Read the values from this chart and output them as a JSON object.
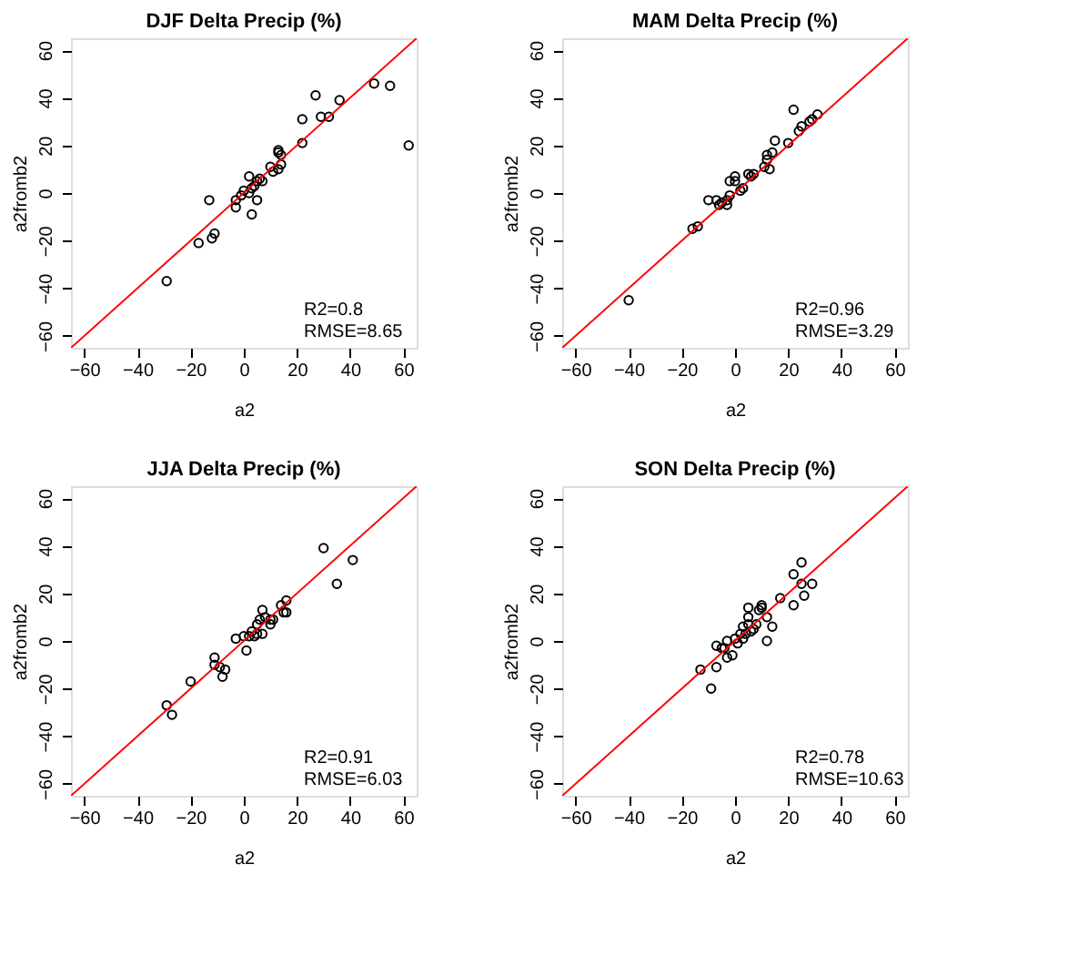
{
  "chart_data": [
    {
      "type": "scatter",
      "title": "DJF Delta Precip (%)",
      "xlabel": "a2",
      "ylabel": "a2fromb2",
      "xlim": [
        -65,
        65
      ],
      "ylim": [
        -65,
        65
      ],
      "xticks": [
        -60,
        -40,
        -20,
        0,
        20,
        40,
        60
      ],
      "yticks": [
        -60,
        -40,
        -20,
        0,
        20,
        40,
        60
      ],
      "grid": false,
      "marker": "circle",
      "annotations": [
        "R2=0.8",
        "RMSE=8.65"
      ],
      "series": [
        {
          "color": "#000000",
          "x": [
            -29,
            -17,
            -12,
            -11,
            -13,
            -3,
            -3,
            -1,
            0,
            2,
            2,
            3,
            3,
            4,
            5,
            5,
            6,
            7,
            10,
            11,
            13,
            13,
            13,
            14,
            14,
            22,
            22,
            27,
            29,
            32,
            36,
            49,
            55,
            62
          ],
          "values": [
            -37,
            -21,
            -19,
            -17,
            -3,
            -3,
            -6,
            -1,
            1,
            0,
            7,
            -9,
            2,
            3,
            -3,
            5,
            6,
            5,
            11,
            9,
            10,
            18,
            17,
            16,
            12,
            21,
            31,
            41,
            32,
            32,
            39,
            46,
            45,
            20
          ]
        },
        {
          "type": "line",
          "marker": "none",
          "color": "#ff0000",
          "x": [
            -65,
            65
          ],
          "values": [
            -65,
            65
          ]
        }
      ]
    },
    {
      "type": "scatter",
      "title": "MAM Delta Precip (%)",
      "xlabel": "a2",
      "ylabel": "a2fromb2",
      "xlim": [
        -65,
        65
      ],
      "ylim": [
        -65,
        65
      ],
      "xticks": [
        -60,
        -40,
        -20,
        0,
        20,
        40,
        60
      ],
      "yticks": [
        -60,
        -40,
        -20,
        0,
        20,
        40,
        60
      ],
      "grid": false,
      "marker": "circle",
      "annotations": [
        "R2=0.96",
        "RMSE=3.29"
      ],
      "series": [
        {
          "color": "#000000",
          "x": [
            -40,
            -16,
            -14,
            -10,
            -7,
            -6,
            -5,
            -3,
            -3,
            -2,
            -2,
            0,
            0,
            2,
            3,
            5,
            6,
            7,
            11,
            12,
            12,
            13,
            14,
            15,
            20,
            22,
            24,
            25,
            28,
            29,
            31
          ],
          "values": [
            -45,
            -15,
            -14,
            -3,
            -3,
            -5,
            -4,
            -5,
            -3,
            -1,
            5,
            7,
            5,
            1,
            2,
            8,
            7,
            8,
            11,
            14,
            16,
            10,
            17,
            22,
            21,
            35,
            26,
            28,
            30,
            31,
            33
          ]
        },
        {
          "type": "line",
          "marker": "none",
          "color": "#ff0000",
          "x": [
            -65,
            65
          ],
          "values": [
            -65,
            65
          ]
        }
      ]
    },
    {
      "type": "scatter",
      "title": "JJA Delta Precip (%)",
      "xlabel": "a2",
      "ylabel": "a2fromb2",
      "xlim": [
        -65,
        65
      ],
      "ylim": [
        -65,
        65
      ],
      "xticks": [
        -60,
        -40,
        -20,
        0,
        20,
        40,
        60
      ],
      "yticks": [
        -60,
        -40,
        -20,
        0,
        20,
        40,
        60
      ],
      "grid": false,
      "marker": "circle",
      "annotations": [
        "R2=0.91",
        "RMSE=6.03"
      ],
      "series": [
        {
          "color": "#000000",
          "x": [
            -29,
            -27,
            -20,
            -11,
            -11,
            -9,
            -8,
            -7,
            -3,
            0,
            1,
            2,
            3,
            4,
            5,
            5,
            6,
            7,
            7,
            8,
            10,
            10,
            11,
            14,
            15,
            16,
            16,
            30,
            35,
            41
          ],
          "values": [
            -27,
            -31,
            -17,
            -7,
            -10,
            -11,
            -15,
            -12,
            1,
            2,
            -4,
            2,
            4,
            2,
            7,
            3,
            9,
            13,
            3,
            10,
            7,
            9,
            9,
            15,
            12,
            12,
            17,
            39,
            24,
            34
          ]
        },
        {
          "type": "line",
          "marker": "none",
          "color": "#ff0000",
          "x": [
            -65,
            65
          ],
          "values": [
            -65,
            65
          ]
        }
      ]
    },
    {
      "type": "scatter",
      "title": "SON Delta Precip (%)",
      "xlabel": "a2",
      "ylabel": "a2fromb2",
      "xlim": [
        -65,
        65
      ],
      "ylim": [
        -65,
        65
      ],
      "xticks": [
        -60,
        -40,
        -20,
        0,
        20,
        40,
        60
      ],
      "yticks": [
        -60,
        -40,
        -20,
        0,
        20,
        40,
        60
      ],
      "grid": false,
      "marker": "circle",
      "annotations": [
        "R2=0.78",
        "RMSE=10.63"
      ],
      "series": [
        {
          "color": "#000000",
          "x": [
            -13,
            -9,
            -7,
            -7,
            -5,
            -4,
            -3,
            -3,
            -1,
            0,
            1,
            2,
            3,
            3,
            4,
            5,
            5,
            5,
            6,
            7,
            8,
            9,
            10,
            10,
            12,
            12,
            14,
            17,
            22,
            22,
            25,
            25,
            26,
            29
          ],
          "values": [
            -12,
            -20,
            -11,
            -2,
            -3,
            -3,
            -7,
            0,
            -6,
            1,
            -1,
            3,
            1,
            6,
            3,
            7,
            14,
            10,
            4,
            5,
            7,
            13,
            15,
            14,
            0,
            10,
            6,
            18,
            28,
            15,
            24,
            33,
            19,
            24
          ]
        },
        {
          "type": "line",
          "marker": "none",
          "color": "#ff0000",
          "x": [
            -65,
            65
          ],
          "values": [
            -65,
            65
          ]
        }
      ]
    }
  ]
}
